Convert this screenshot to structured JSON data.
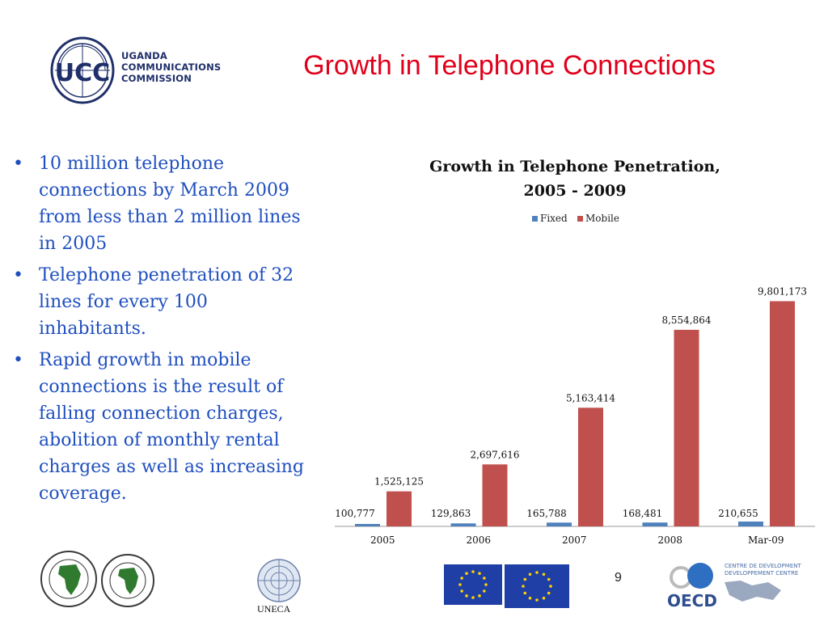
{
  "header": {
    "slide_title": "Growth in Telephone Connections",
    "logo": {
      "initials": "UCC",
      "line1": "UGANDA",
      "line2": "COMMUNICATIONS",
      "line3": "COMMISSION"
    }
  },
  "bullets": [
    "10 million telephone connections by March 2009 from less than 2 million lines in 2005",
    "Telephone penetration of 32 lines for every 100 inhabitants.",
    "Rapid growth in mobile connections is the result of falling connection charges, abolition of monthly rental charges as well as increasing coverage."
  ],
  "chart_data": {
    "type": "bar",
    "title": "Growth in Telephone Penetration, 2005 - 2009",
    "title_lines": [
      "Growth in Telephone Penetration,",
      "2005 - 2009"
    ],
    "categories": [
      "2005",
      "2006",
      "2007",
      "2008",
      "Mar-09"
    ],
    "series": [
      {
        "name": "Fixed",
        "color": "#4f81bd",
        "values": [
          100777,
          129863,
          165788,
          168481,
          210655
        ],
        "labels": [
          "100,777",
          "129,863",
          "165,788",
          "168,481",
          "210,655"
        ]
      },
      {
        "name": "Mobile",
        "color": "#c0504d",
        "values": [
          1525125,
          2697616,
          5163414,
          8554864,
          9801173
        ],
        "labels": [
          "1,525,125",
          "2,697,616",
          "5,163,414",
          "8,554,864",
          "9,801,173"
        ]
      }
    ],
    "legend_position": "top",
    "ylim": [
      0,
      12000000
    ],
    "grid": false,
    "xlabel": "",
    "ylabel": ""
  },
  "footer": {
    "page_number": "9",
    "uneca_label": "UNECA",
    "oecd_label": "OECD",
    "oecd_centre_line1": "CENTRE DE DEVELOPMENT",
    "oecd_centre_line2": "DEVELOPPEMENT CENTRE",
    "afdb_logo": "african-development-bank-logo",
    "eu_flag": "eu-flag"
  }
}
